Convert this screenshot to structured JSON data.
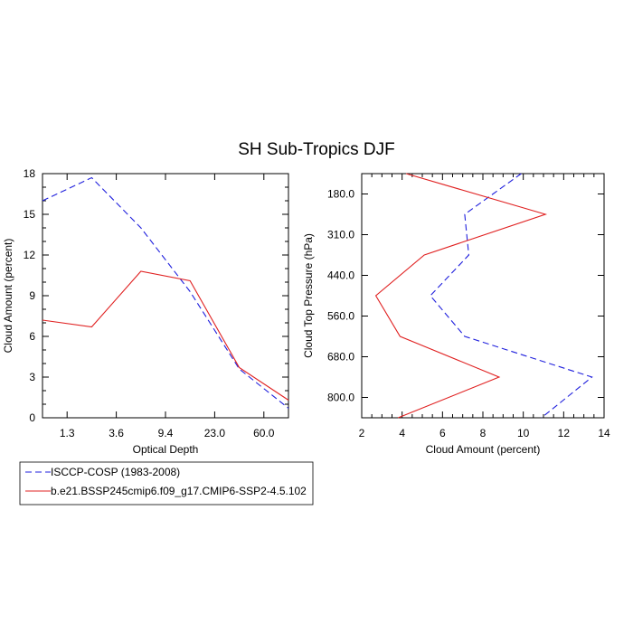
{
  "title": "SH Sub-Tropics DJF",
  "colors": {
    "obs": "#1f1fdd",
    "model": "#e02020"
  },
  "chart_data": [
    {
      "type": "line",
      "xlabel": "Optical Depth",
      "ylabel": "Cloud Amount (percent)",
      "x_tick_labels": [
        "1.3",
        "3.6",
        "9.4",
        "23.0",
        "60.0"
      ],
      "y_tick_labels": [
        "0",
        "3",
        "6",
        "9",
        "12",
        "15",
        "18"
      ],
      "ylim": [
        0,
        18
      ],
      "series": [
        {
          "name": "ISCCP-COSP (1983-2008)",
          "style": "dashed",
          "color": "obs",
          "values": [
            16.0,
            17.7,
            14.0,
            9.3,
            3.6,
            0.7
          ]
        },
        {
          "name": "b.e21.BSSP245cmip6.f09_g17.CMIP6-SSP2-4.5.102",
          "style": "solid",
          "color": "model",
          "values": [
            7.2,
            6.7,
            10.8,
            10.1,
            3.7,
            1.3
          ]
        }
      ]
    },
    {
      "type": "line",
      "xlabel": "Cloud Amount (percent)",
      "ylabel": "Cloud Top Pressure (hPa)",
      "x_tick_labels": [
        "2",
        "4",
        "6",
        "8",
        "10",
        "12",
        "14"
      ],
      "xlim": [
        2,
        14
      ],
      "y_tick_labels": [
        "180.0",
        "310.0",
        "440.0",
        "560.0",
        "680.0",
        "800.0"
      ],
      "series": [
        {
          "name": "ISCCP-COSP (1983-2008)",
          "style": "dashed",
          "color": "obs",
          "values": [
            9.9,
            7.1,
            7.3,
            5.4,
            7.1,
            13.4,
            10.9
          ]
        },
        {
          "name": "b.e21.BSSP245cmip6.f09_g17.CMIP6-SSP2-4.5.102",
          "style": "solid",
          "color": "model",
          "values": [
            4.2,
            11.1,
            5.1,
            2.7,
            3.9,
            8.8,
            3.8
          ]
        }
      ]
    }
  ],
  "legend": [
    {
      "label": "ISCCP-COSP (1983-2008)",
      "style": "dashed",
      "color": "obs"
    },
    {
      "label": "b.e21.BSSP245cmip6.f09_g17.CMIP6-SSP2-4.5.102",
      "style": "solid",
      "color": "model"
    }
  ]
}
